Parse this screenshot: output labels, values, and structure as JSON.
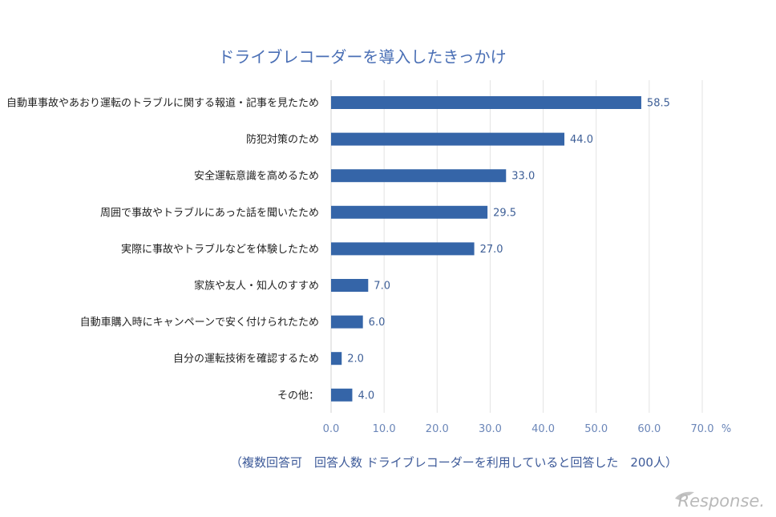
{
  "chart_data": {
    "type": "bar",
    "orientation": "horizontal",
    "title": "ドライブレコーダーを導入したきっかけ",
    "categories": [
      "自動車事故やあおり運転のトラブルに関する報道・記事を見たため",
      "防犯対策のため",
      "安全運転意識を高めるため",
      "周囲で事故やトラブルにあった話を聞いたため",
      "実際に事故やトラブルなどを体験したため",
      "家族や友人・知人のすすめ",
      "自動車購入時にキャンペーンで安く付けられたため",
      "自分の運転技術を確認するため",
      "その他："
    ],
    "values": [
      58.5,
      44.0,
      33.0,
      29.5,
      27.0,
      7.0,
      6.0,
      2.0,
      4.0
    ],
    "value_labels": [
      "58.5",
      "44.0",
      "33.0",
      "29.5",
      "27.0",
      "7.0",
      "6.0",
      "2.0",
      "4.0"
    ],
    "xlim": [
      0,
      70
    ],
    "x_ticks": [
      "0.0",
      "10.0",
      "20.0",
      "30.0",
      "40.0",
      "50.0",
      "60.0",
      "70.0"
    ],
    "x_unit": "%",
    "grid": true,
    "bar_color": "#3565a8",
    "note": "（複数回答可　回答人数 ドライブレコーダーを利用していると回答した　200人）"
  },
  "watermark": "Response."
}
